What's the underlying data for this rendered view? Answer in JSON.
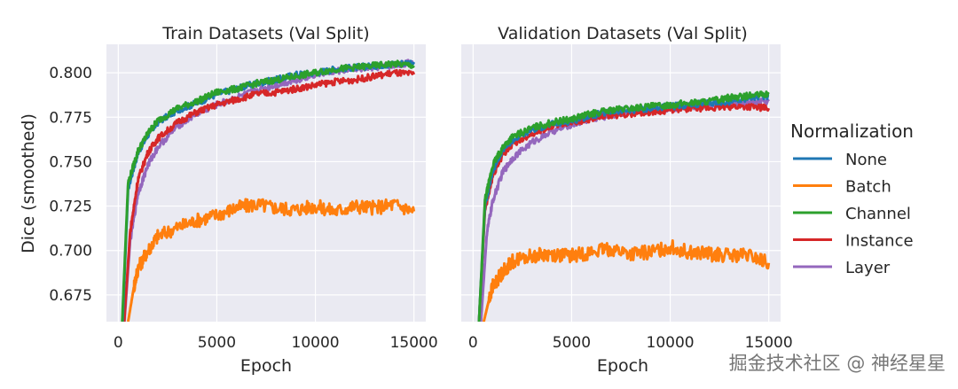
{
  "chart_data": [
    {
      "type": "line",
      "title": "Train Datasets (Val Split)",
      "xlabel": "Epoch",
      "ylabel": "Dice (smoothed)",
      "xlim": [
        -600,
        15600
      ],
      "ylim": [
        0.66,
        0.816
      ],
      "xticks": [
        0,
        5000,
        10000,
        15000
      ],
      "xtick_labels": [
        "0",
        "5000",
        "10000",
        "15000"
      ],
      "yticks": [
        0.675,
        0.7,
        0.725,
        0.75,
        0.775,
        0.8
      ],
      "ytick_labels": [
        "0.675",
        "0.700",
        "0.725",
        "0.750",
        "0.775",
        "0.800"
      ],
      "grid": true,
      "series": [
        {
          "name": "None",
          "color": "#1f77b4",
          "x": [
            200,
            500,
            1000,
            1500,
            2000,
            3000,
            4000,
            5000,
            6000,
            7000,
            8000,
            9000,
            10000,
            11000,
            12000,
            13000,
            14000,
            15000
          ],
          "y": [
            0.655,
            0.735,
            0.755,
            0.765,
            0.772,
            0.779,
            0.783,
            0.788,
            0.791,
            0.794,
            0.796,
            0.799,
            0.8,
            0.802,
            0.803,
            0.804,
            0.805,
            0.806
          ]
        },
        {
          "name": "Batch",
          "color": "#ff7f0e",
          "x": [
            500,
            800,
            1000,
            1500,
            2000,
            3000,
            4000,
            5000,
            6000,
            7000,
            8000,
            9000,
            10000,
            11000,
            12000,
            13000,
            14000,
            15000
          ],
          "y": [
            0.66,
            0.68,
            0.69,
            0.7,
            0.708,
            0.713,
            0.717,
            0.72,
            0.724,
            0.726,
            0.724,
            0.723,
            0.725,
            0.722,
            0.725,
            0.724,
            0.726,
            0.722
          ]
        },
        {
          "name": "Channel",
          "color": "#2ca02c",
          "x": [
            200,
            500,
            1000,
            1500,
            2000,
            3000,
            4000,
            5000,
            6000,
            7000,
            8000,
            9000,
            10000,
            11000,
            12000,
            13000,
            14000,
            15000
          ],
          "y": [
            0.66,
            0.738,
            0.756,
            0.766,
            0.773,
            0.78,
            0.784,
            0.789,
            0.791,
            0.794,
            0.796,
            0.798,
            0.8,
            0.802,
            0.803,
            0.804,
            0.805,
            0.804
          ]
        },
        {
          "name": "Instance",
          "color": "#d62728",
          "x": [
            300,
            600,
            1000,
            1500,
            2000,
            3000,
            4000,
            5000,
            6000,
            7000,
            8000,
            9000,
            10000,
            11000,
            12000,
            13000,
            14000,
            15000
          ],
          "y": [
            0.66,
            0.71,
            0.74,
            0.755,
            0.763,
            0.772,
            0.778,
            0.782,
            0.785,
            0.788,
            0.789,
            0.791,
            0.793,
            0.795,
            0.796,
            0.798,
            0.8,
            0.799
          ]
        },
        {
          "name": "Layer",
          "color": "#9467bd",
          "x": [
            300,
            600,
            1000,
            1500,
            2000,
            3000,
            4000,
            5000,
            6000,
            7000,
            8000,
            9000,
            10000,
            11000,
            12000,
            13000,
            14000,
            15000
          ],
          "y": [
            0.658,
            0.705,
            0.732,
            0.748,
            0.758,
            0.77,
            0.777,
            0.782,
            0.786,
            0.79,
            0.793,
            0.796,
            0.799,
            0.801,
            0.802,
            0.803,
            0.804,
            0.806
          ]
        }
      ]
    },
    {
      "type": "line",
      "title": "Validation Datasets (Val Split)",
      "xlabel": "Epoch",
      "ylabel": "",
      "xlim": [
        -600,
        15600
      ],
      "ylim": [
        0.66,
        0.816
      ],
      "xticks": [
        0,
        5000,
        10000,
        15000
      ],
      "xtick_labels": [
        "0",
        "5000",
        "10000",
        "15000"
      ],
      "yticks": [
        0.675,
        0.7,
        0.725,
        0.75,
        0.775,
        0.8
      ],
      "ytick_labels": [],
      "grid": true,
      "series": [
        {
          "name": "None",
          "color": "#1f77b4",
          "x": [
            300,
            600,
            1000,
            1500,
            2000,
            3000,
            4000,
            5000,
            6000,
            7000,
            8000,
            9000,
            10000,
            11000,
            12000,
            13000,
            14000,
            15000
          ],
          "y": [
            0.66,
            0.725,
            0.745,
            0.757,
            0.762,
            0.768,
            0.771,
            0.773,
            0.776,
            0.778,
            0.779,
            0.78,
            0.781,
            0.782,
            0.783,
            0.784,
            0.786,
            0.787
          ]
        },
        {
          "name": "Batch",
          "color": "#ff7f0e",
          "x": [
            500,
            800,
            1000,
            1500,
            2000,
            3000,
            4000,
            5000,
            6000,
            7000,
            8000,
            9000,
            10000,
            11000,
            12000,
            13000,
            14000,
            15000
          ],
          "y": [
            0.658,
            0.672,
            0.68,
            0.688,
            0.694,
            0.697,
            0.698,
            0.697,
            0.699,
            0.701,
            0.698,
            0.699,
            0.702,
            0.699,
            0.698,
            0.697,
            0.697,
            0.693
          ]
        },
        {
          "name": "Channel",
          "color": "#2ca02c",
          "x": [
            300,
            600,
            1000,
            1500,
            2000,
            3000,
            4000,
            5000,
            6000,
            7000,
            8000,
            9000,
            10000,
            11000,
            12000,
            13000,
            14000,
            15000
          ],
          "y": [
            0.66,
            0.728,
            0.748,
            0.758,
            0.764,
            0.769,
            0.772,
            0.774,
            0.777,
            0.779,
            0.78,
            0.781,
            0.782,
            0.783,
            0.784,
            0.786,
            0.787,
            0.788
          ]
        },
        {
          "name": "Instance",
          "color": "#d62728",
          "x": [
            300,
            600,
            1000,
            1500,
            2000,
            3000,
            4000,
            5000,
            6000,
            7000,
            8000,
            9000,
            10000,
            11000,
            12000,
            13000,
            14000,
            15000
          ],
          "y": [
            0.66,
            0.722,
            0.742,
            0.754,
            0.76,
            0.766,
            0.77,
            0.772,
            0.774,
            0.776,
            0.777,
            0.778,
            0.779,
            0.78,
            0.78,
            0.781,
            0.781,
            0.78
          ]
        },
        {
          "name": "Layer",
          "color": "#9467bd",
          "x": [
            400,
            700,
            1000,
            1500,
            2000,
            3000,
            4000,
            5000,
            6000,
            7000,
            8000,
            9000,
            10000,
            11000,
            12000,
            13000,
            14000,
            15000
          ],
          "y": [
            0.66,
            0.71,
            0.728,
            0.744,
            0.752,
            0.761,
            0.767,
            0.771,
            0.774,
            0.776,
            0.778,
            0.779,
            0.78,
            0.781,
            0.782,
            0.782,
            0.783,
            0.784
          ]
        }
      ]
    }
  ],
  "legend": {
    "title": "Normalization",
    "placement": "right",
    "entries": [
      {
        "label": "None",
        "color": "#1f77b4"
      },
      {
        "label": "Batch",
        "color": "#ff7f0e"
      },
      {
        "label": "Channel",
        "color": "#2ca02c"
      },
      {
        "label": "Instance",
        "color": "#d62728"
      },
      {
        "label": "Layer",
        "color": "#9467bd"
      }
    ]
  },
  "watermark": "掘金技术社区 @ 神经星星"
}
